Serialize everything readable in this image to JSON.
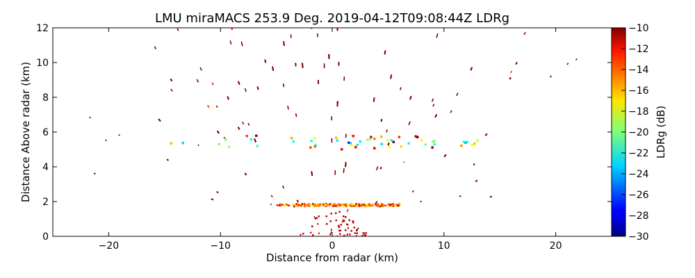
{
  "chart_data": {
    "type": "heatmap",
    "title": "LMU miraMACS 253.9 Deg. 2019-04-12T09:08:44Z  LDRg",
    "xlabel": "Distance from radar (km)",
    "ylabel": "Distance Above radar  (km)",
    "xlim": [
      -25,
      25
    ],
    "ylim": [
      0,
      12
    ],
    "x_ticks": [
      -20,
      -10,
      0,
      10,
      20
    ],
    "y_ticks": [
      0,
      2,
      4,
      6,
      8,
      10,
      12
    ],
    "x_tick_labels": [
      "−20",
      "−10",
      "0",
      "10",
      "20"
    ],
    "y_tick_labels": [
      "0",
      "2",
      "4",
      "6",
      "8",
      "10",
      "12"
    ],
    "grid": false,
    "colorbar": {
      "label": "LDRg (dB)",
      "range": [
        -30,
        -10
      ],
      "ticks": [
        -30,
        -28,
        -26,
        -24,
        -22,
        -20,
        -18,
        -16,
        -14,
        -12,
        -10
      ],
      "tick_labels": [
        "−30",
        "−28",
        "−26",
        "−24",
        "−22",
        "−20",
        "−18",
        "−16",
        "−14",
        "−12",
        "−10"
      ],
      "colormap": "jet"
    },
    "features": [
      {
        "name": "melting-layer",
        "x_range": [
          -15,
          13
        ],
        "height_km": 5.4,
        "thickness_km": 0.8,
        "ldr_db": -20
      },
      {
        "name": "low-layer",
        "x_range": [
          -5,
          6
        ],
        "height_km": 1.8,
        "thickness_km": 0.15,
        "ldr_db": -15
      },
      {
        "name": "near-radar-clutter",
        "x_range": [
          -3,
          3
        ],
        "height_km": [
          0,
          1.8
        ],
        "ldr_db": -10
      },
      {
        "name": "scattered-echoes",
        "x_range": [
          -22,
          22
        ],
        "height_km": [
          0,
          12
        ],
        "ldr_db": -10
      }
    ]
  }
}
